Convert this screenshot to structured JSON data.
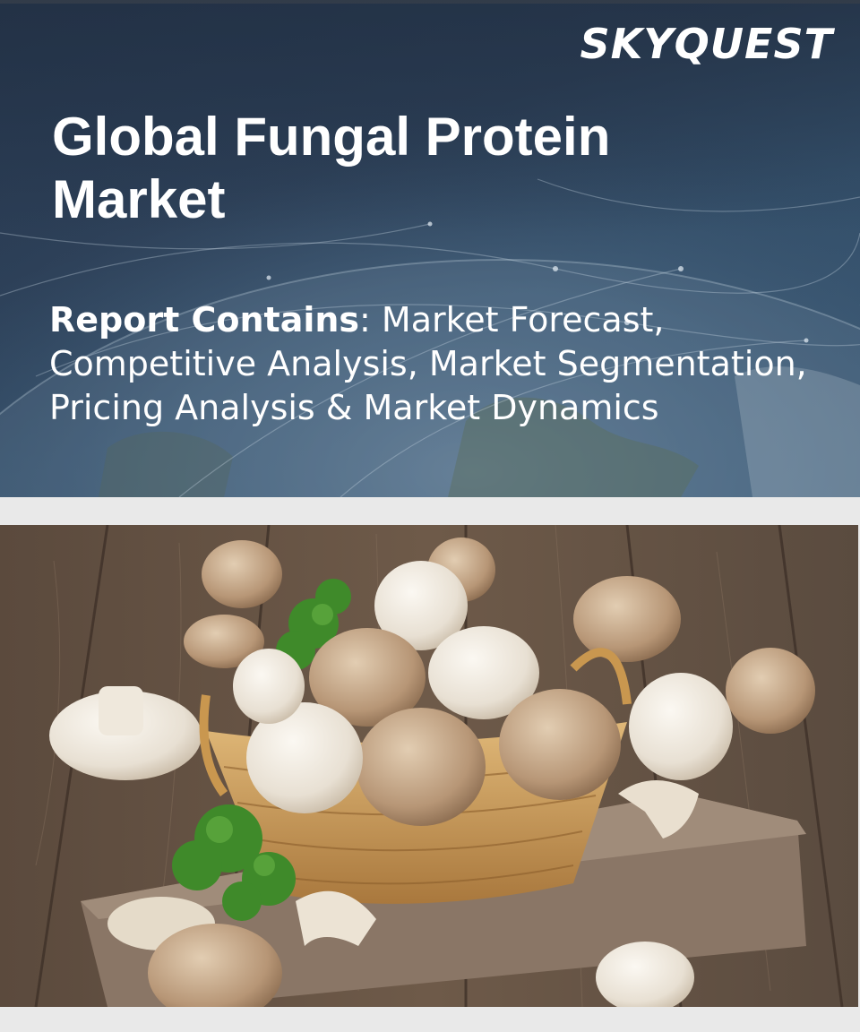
{
  "brand": {
    "logo_text": "SKYQUEST"
  },
  "report": {
    "title": "Global Fungal Protein Market",
    "contains_label": "Report Contains",
    "contains_text": ": Market Forecast, Competitive Analysis, Market Segmentation, Pricing Analysis & Market Dynamics"
  },
  "colors": {
    "banner_dark": "#27384f",
    "banner_light": "#3b5a76",
    "page_background": "#e9e9e9",
    "text": "#ffffff"
  },
  "images": {
    "banner_background": "globe-network-image",
    "product_photo": "mushrooms-in-basket-photo"
  }
}
